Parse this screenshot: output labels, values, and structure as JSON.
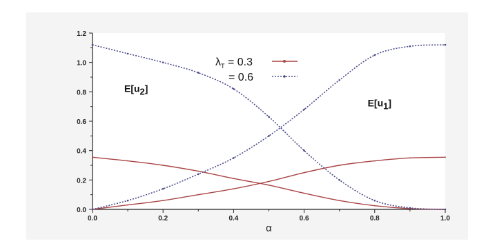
{
  "chart_data": {
    "type": "line",
    "xlabel": "α",
    "ylabel": "",
    "xlim": [
      0.0,
      1.0
    ],
    "ylim": [
      0.0,
      1.2
    ],
    "xticks": [
      "0.0",
      "0.2",
      "0.4",
      "0.6",
      "0.8",
      "1.0"
    ],
    "yticks": [
      "0.0",
      "0.2",
      "0.4",
      "0.6",
      "0.8",
      "1.0",
      "1.2"
    ],
    "grid": false,
    "legend_placement": "top-center",
    "legend": {
      "lambda_symbol": "λ",
      "lambda_subscript": "T",
      "entry1": " = 0.3",
      "entry2": "= 0.6"
    },
    "annotations": [
      {
        "text": "E[u",
        "sub": "2",
        "close": "]",
        "at": [
          0.09,
          0.8
        ]
      },
      {
        "text": "E[u",
        "sub": "1",
        "close": "]",
        "at": [
          0.78,
          0.7
        ]
      }
    ],
    "series": [
      {
        "key": "lambda_0.3_up",
        "color": "#a94444",
        "style": "solid",
        "x": [
          0.0,
          0.1,
          0.2,
          0.3,
          0.4,
          0.5,
          0.6,
          0.7,
          0.8,
          0.9,
          1.0
        ],
        "y": [
          0.0,
          0.03,
          0.06,
          0.1,
          0.14,
          0.19,
          0.25,
          0.3,
          0.33,
          0.35,
          0.355
        ]
      },
      {
        "key": "lambda_0.3_down",
        "color": "#a94444",
        "style": "solid",
        "x": [
          0.0,
          0.1,
          0.2,
          0.3,
          0.4,
          0.5,
          0.6,
          0.7,
          0.8,
          0.9,
          1.0
        ],
        "y": [
          0.355,
          0.33,
          0.3,
          0.26,
          0.21,
          0.165,
          0.11,
          0.06,
          0.025,
          0.005,
          0.0
        ]
      },
      {
        "key": "lambda_0.6_up",
        "color": "#4a4a8a",
        "style": "dotted",
        "x": [
          0.0,
          0.1,
          0.2,
          0.3,
          0.4,
          0.5,
          0.6,
          0.7,
          0.8,
          0.9,
          1.0
        ],
        "y": [
          0.0,
          0.06,
          0.14,
          0.24,
          0.35,
          0.5,
          0.68,
          0.88,
          1.05,
          1.11,
          1.12
        ]
      },
      {
        "key": "lambda_0.6_down",
        "color": "#4a4a8a",
        "style": "dotted",
        "x": [
          0.0,
          0.1,
          0.2,
          0.3,
          0.4,
          0.5,
          0.6,
          0.7,
          0.8,
          0.9,
          1.0
        ],
        "y": [
          1.12,
          1.06,
          1.0,
          0.93,
          0.82,
          0.63,
          0.4,
          0.2,
          0.06,
          0.01,
          0.0
        ]
      }
    ]
  }
}
